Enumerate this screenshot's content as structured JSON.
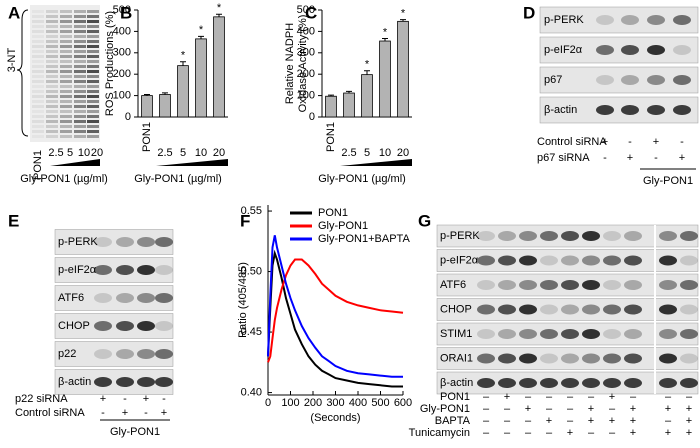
{
  "panels": {
    "A": {
      "letter": "A",
      "label": "3-NT",
      "lanes": [
        "PON1",
        "2.5",
        "5",
        "10",
        "20"
      ],
      "xlabel": "Gly-PON1 (µg/ml)"
    },
    "B": {
      "letter": "B"
    },
    "C": {
      "letter": "C"
    },
    "D": {
      "letter": "D",
      "rows": [
        "p-PERK",
        "p-eIF2α",
        "p67",
        "β-actin"
      ],
      "treatments": [
        {
          "name": "Control siRNA",
          "signs": [
            "+",
            "-",
            "+",
            "-"
          ]
        },
        {
          "name": "p67 siRNA",
          "signs": [
            "-",
            "+",
            "-",
            "+"
          ]
        }
      ],
      "group": "Gly-PON1"
    },
    "E": {
      "letter": "E",
      "rows": [
        "p-PERK",
        "p-eIF2α",
        "ATF6",
        "CHOP",
        "p22",
        "β-actin"
      ],
      "treatments": [
        {
          "name": "p22 siRNA",
          "signs": [
            "+",
            "-",
            "+",
            "-"
          ]
        },
        {
          "name": "Control siRNA",
          "signs": [
            "-",
            "+",
            "-",
            "+"
          ]
        }
      ],
      "group": "Gly-PON1"
    },
    "F": {
      "letter": "F"
    },
    "G": {
      "letter": "G",
      "rows": [
        "p-PERK",
        "p-eIF2α",
        "ATF6",
        "CHOP",
        "STIM1",
        "ORAI1",
        "β-actin"
      ],
      "treatments": [
        {
          "name": "PON1",
          "signs": [
            "–",
            "+",
            "–",
            "–",
            "–",
            "–",
            "+",
            "–",
            "–",
            "–"
          ]
        },
        {
          "name": "Gly-PON1",
          "signs": [
            "–",
            "–",
            "+",
            "–",
            "–",
            "+",
            "–",
            "+",
            "+",
            "+"
          ]
        },
        {
          "name": "BAPTA",
          "signs": [
            "–",
            "–",
            "–",
            "+",
            "–",
            "+",
            "+",
            "+",
            "–",
            "+"
          ]
        },
        {
          "name": "Tunicamycin",
          "signs": [
            "–",
            "–",
            "–",
            "–",
            "+",
            "–",
            "–",
            "+",
            "+",
            "+"
          ]
        }
      ]
    }
  },
  "chart_data": [
    {
      "type": "bar",
      "ylabel": [
        "ROS Productions (%)"
      ],
      "xlabel": "Gly-PON1 (µg/ml)",
      "categories": [
        "PON1",
        "2.5",
        "5",
        "10",
        "20"
      ],
      "values": [
        100,
        105,
        240,
        365,
        468
      ],
      "errors": [
        5,
        8,
        18,
        12,
        12
      ],
      "color": "#b3b3b3",
      "ylim": [
        0,
        500
      ],
      "yticks": [
        0,
        100,
        200,
        300,
        400,
        500
      ],
      "annotations": [
        {
          "category": "5",
          "text": "*"
        },
        {
          "category": "10",
          "text": "*"
        },
        {
          "category": "20",
          "text": "*"
        }
      ]
    },
    {
      "type": "bar",
      "ylabel": [
        "Relative NADPH",
        "Oxidase Activity (%)"
      ],
      "xlabel": "Gly-PON1 (µg/ml)",
      "categories": [
        "PON1",
        "2.5",
        "5",
        "10",
        "20"
      ],
      "values": [
        97,
        112,
        198,
        355,
        447
      ],
      "errors": [
        5,
        8,
        18,
        12,
        8
      ],
      "color": "#b3b3b3",
      "ylim": [
        0,
        500
      ],
      "yticks": [
        0,
        100,
        200,
        300,
        400,
        500
      ],
      "annotations": [
        {
          "category": "5",
          "text": "*"
        },
        {
          "category": "10",
          "text": "*"
        },
        {
          "category": "20",
          "text": "*"
        }
      ]
    },
    {
      "type": "line",
      "ylabel": [
        "Ratio (405/485)"
      ],
      "xlabel": "(Seconds)",
      "x": [
        0,
        10,
        20,
        30,
        40,
        60,
        80,
        100,
        120,
        150,
        180,
        210,
        240,
        270,
        300,
        350,
        400,
        450,
        500,
        550,
        600
      ],
      "series": [
        {
          "name": "PON1",
          "color": "#000000",
          "values": [
            0.43,
            0.47,
            0.505,
            0.515,
            0.51,
            0.495,
            0.478,
            0.465,
            0.452,
            0.44,
            0.43,
            0.423,
            0.418,
            0.415,
            0.412,
            0.41,
            0.408,
            0.407,
            0.406,
            0.405,
            0.405
          ]
        },
        {
          "name": "Gly-PON1",
          "color": "#ff0000",
          "values": [
            0.425,
            0.43,
            0.445,
            0.46,
            0.47,
            0.485,
            0.497,
            0.505,
            0.51,
            0.51,
            0.505,
            0.498,
            0.49,
            0.485,
            0.48,
            0.475,
            0.472,
            0.47,
            0.468,
            0.467,
            0.466
          ]
        },
        {
          "name": "Gly-PON1+BAPTA",
          "color": "#0000ff",
          "values": [
            0.43,
            0.48,
            0.52,
            0.53,
            0.52,
            0.505,
            0.49,
            0.478,
            0.468,
            0.455,
            0.445,
            0.437,
            0.43,
            0.426,
            0.422,
            0.418,
            0.416,
            0.415,
            0.414,
            0.413,
            0.413
          ]
        }
      ],
      "xlim": [
        0,
        600
      ],
      "xticks": [
        0,
        100,
        200,
        300,
        400,
        500,
        600
      ],
      "ylim": [
        0.398,
        0.555
      ],
      "yticks": [
        {
          "value": 0.4,
          "label": "0.40"
        },
        0.45,
        {
          "value": 0.5,
          "label": "0.50"
        },
        0.55
      ],
      "legend": "upper left"
    }
  ]
}
